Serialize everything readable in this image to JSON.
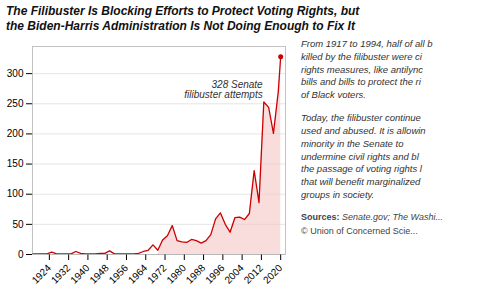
{
  "chart_data": {
    "type": "line",
    "title": "The Filibuster Is Blocking Efforts to Protect Voting Rights, but\nthe Biden-Harris Administration Is Not Doing Enough to Fix It",
    "x": [
      1917,
      1919,
      1921,
      1923,
      1925,
      1927,
      1929,
      1931,
      1933,
      1935,
      1937,
      1939,
      1941,
      1943,
      1945,
      1947,
      1949,
      1951,
      1953,
      1955,
      1957,
      1959,
      1961,
      1963,
      1965,
      1967,
      1969,
      1971,
      1973,
      1975,
      1977,
      1979,
      1981,
      1983,
      1985,
      1987,
      1989,
      1991,
      1993,
      1995,
      1997,
      1999,
      2001,
      2003,
      2005,
      2007,
      2009,
      2011,
      2013,
      2015,
      2017,
      2019,
      2020
    ],
    "series": [
      {
        "type": "line",
        "color": "#cc0000",
        "values": [
          1,
          1,
          1,
          1,
          4,
          1,
          1,
          1,
          1,
          5,
          2,
          1,
          1,
          1,
          2,
          2,
          6,
          1,
          1,
          1,
          1,
          1,
          2,
          5,
          7,
          16,
          7,
          24,
          31,
          48,
          23,
          21,
          20,
          25,
          23,
          19,
          23,
          33,
          59,
          69,
          50,
          37,
          61,
          62,
          58,
          68,
          139,
          86,
          253,
          244,
          201,
          270,
          328
        ]
      },
      {
        "type": "area",
        "color": "#f5c6c6",
        "values": [
          null,
          null,
          null,
          null,
          null,
          null,
          null,
          null,
          null,
          null,
          null,
          null,
          null,
          null,
          null,
          null,
          null,
          null,
          null,
          null,
          null,
          null,
          null,
          null,
          null,
          null,
          null,
          24,
          31,
          48,
          23,
          21,
          20,
          25,
          23,
          19,
          23,
          33,
          59,
          69,
          50,
          37,
          61,
          62,
          58,
          68,
          139,
          86,
          253,
          244,
          201,
          270,
          328
        ]
      }
    ],
    "xlim": [
      1917,
      2022
    ],
    "xticks": [
      1924,
      1932,
      1940,
      1948,
      1956,
      1964,
      1972,
      1980,
      1988,
      1996,
      2004,
      2012,
      2020
    ],
    "ylim": [
      0,
      345
    ],
    "yticks": [
      0,
      50,
      100,
      150,
      200,
      250,
      300
    ],
    "grid": "y",
    "annotations": [
      {
        "x": 2020,
        "y": 328,
        "text": "328 Senate\nfilibuster attempts",
        "marker": "circle"
      }
    ],
    "notes": [
      "From 1917 to 1994, half of all b\nkilled by the filibuster were ci\nrights measures, like antilync\nbills and bills to protect the ri\nof Black voters.",
      "Today, the filibuster continue\nused and abused. It is allowin\nminority in the Senate to\nundermine civil rights and bl\nthe passage of voting rights l\nthat will benefit marginalized\ngroups in society."
    ],
    "source_label": "Sources:",
    "source_text": " Senate.gov; The Washi...",
    "credit": "© Union of Concerned Scie..."
  }
}
